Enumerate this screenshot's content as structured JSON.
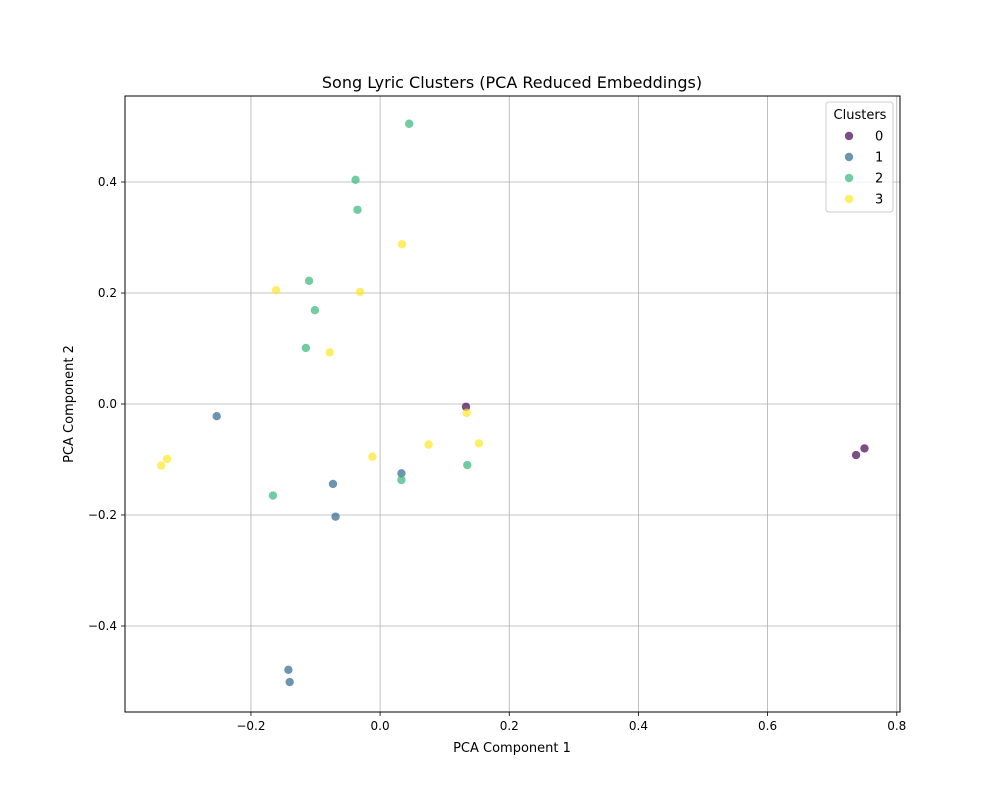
{
  "chart_data": {
    "type": "scatter",
    "title": "Song Lyric Clusters (PCA Reduced Embeddings)",
    "xlabel": "PCA Component 1",
    "ylabel": "PCA Component 2",
    "xlim": [
      -0.395,
      0.805
    ],
    "ylim": [
      -0.555,
      0.555
    ],
    "xticks": [
      -0.2,
      0.0,
      0.2,
      0.4,
      0.6,
      0.8
    ],
    "xtick_labels": [
      "−0.2",
      "0.0",
      "0.2",
      "0.4",
      "0.6",
      "0.8"
    ],
    "yticks": [
      -0.4,
      -0.2,
      0.0,
      0.2,
      0.4
    ],
    "ytick_labels": [
      "−0.4",
      "−0.2",
      "0.0",
      "0.2",
      "0.4"
    ],
    "grid": true,
    "legend": {
      "title": "Clusters",
      "placement": "top-right"
    },
    "series": [
      {
        "name": "0",
        "color": "#440154",
        "points": [
          [
            0.133,
            -0.005
          ],
          [
            0.75,
            -0.08
          ],
          [
            0.737,
            -0.092
          ]
        ]
      },
      {
        "name": "1",
        "color": "#31688e",
        "points": [
          [
            -0.253,
            -0.022
          ],
          [
            0.033,
            -0.125
          ],
          [
            -0.073,
            -0.144
          ],
          [
            -0.069,
            -0.203
          ],
          [
            -0.142,
            -0.479
          ],
          [
            -0.14,
            -0.501
          ]
        ]
      },
      {
        "name": "2",
        "color": "#35b779",
        "points": [
          [
            0.045,
            0.505
          ],
          [
            -0.038,
            0.404
          ],
          [
            -0.035,
            0.35
          ],
          [
            -0.11,
            0.222
          ],
          [
            -0.101,
            0.169
          ],
          [
            -0.115,
            0.101
          ],
          [
            0.135,
            -0.11
          ],
          [
            0.033,
            -0.137
          ],
          [
            -0.166,
            -0.165
          ]
        ]
      },
      {
        "name": "3",
        "color": "#fde725",
        "points": [
          [
            0.034,
            0.288
          ],
          [
            -0.161,
            0.205
          ],
          [
            -0.031,
            0.202
          ],
          [
            -0.078,
            0.093
          ],
          [
            0.134,
            -0.016
          ],
          [
            0.075,
            -0.073
          ],
          [
            0.153,
            -0.071
          ],
          [
            -0.012,
            -0.095
          ],
          [
            -0.33,
            -0.099
          ],
          [
            -0.339,
            -0.111
          ]
        ]
      }
    ]
  }
}
